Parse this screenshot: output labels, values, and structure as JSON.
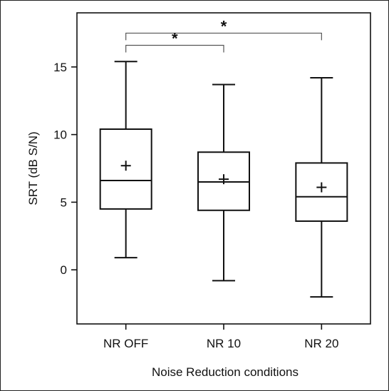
{
  "chart_data": {
    "type": "box",
    "xlabel": "Noise Reduction conditions",
    "ylabel": "SRT (dB S/N)",
    "ylim": [
      -4,
      19
    ],
    "yticks": [
      0,
      5,
      10,
      15
    ],
    "categories": [
      "NR OFF",
      "NR 10",
      "NR 20"
    ],
    "boxes": [
      {
        "name": "NR OFF",
        "min": 0.9,
        "q1": 4.5,
        "median": 6.6,
        "q3": 10.4,
        "max": 15.4,
        "mean": 7.7
      },
      {
        "name": "NR 10",
        "min": -0.8,
        "q1": 4.4,
        "median": 6.5,
        "q3": 8.7,
        "max": 13.7,
        "mean": 6.7
      },
      {
        "name": "NR 20",
        "min": -2.0,
        "q1": 3.6,
        "median": 5.4,
        "q3": 7.9,
        "max": 14.2,
        "mean": 6.1
      }
    ],
    "significance": [
      {
        "from": 0,
        "to": 2,
        "label": "*",
        "level": 17.5
      },
      {
        "from": 0,
        "to": 1,
        "label": "*",
        "level": 16.6
      }
    ],
    "grid": false,
    "legend": "none"
  }
}
